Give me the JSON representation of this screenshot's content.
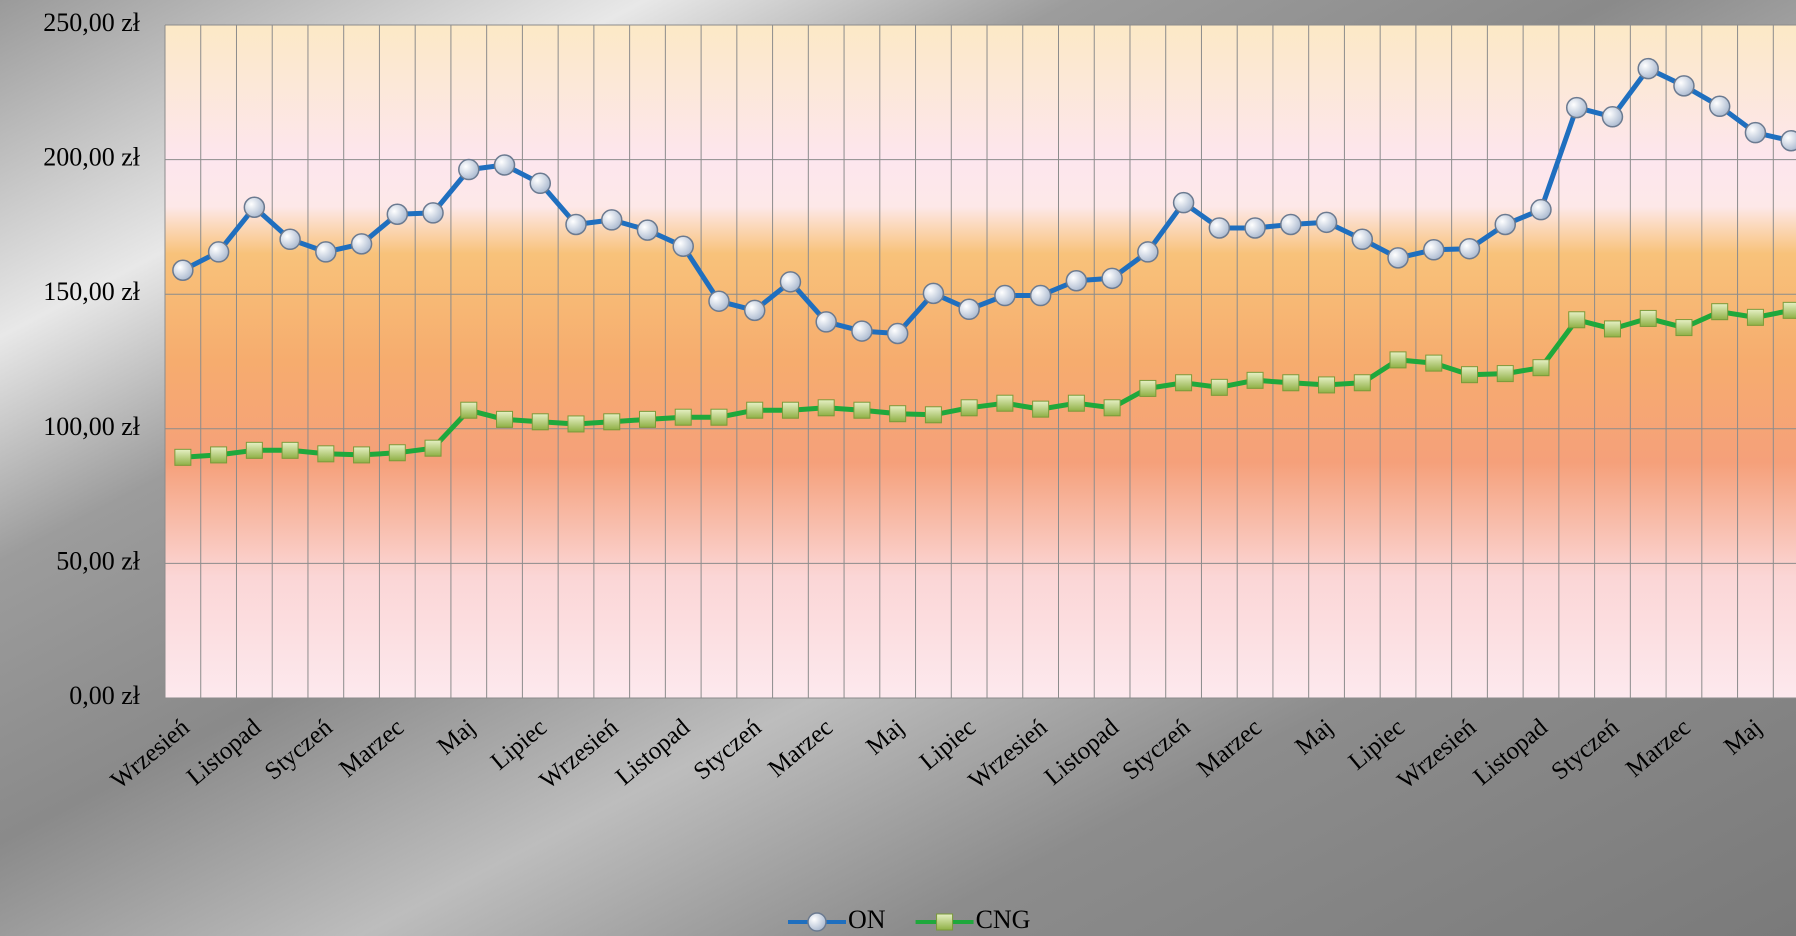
{
  "chart_data": {
    "type": "line",
    "categories": [
      "Wrzesień",
      null,
      "Listopad",
      null,
      "Styczeń",
      null,
      "Marzec",
      null,
      "Maj",
      null,
      "Lipiec",
      null,
      "Wrzesień",
      null,
      "Listopad",
      null,
      "Styczeń",
      null,
      "Marzec",
      null,
      "Maj",
      null,
      "Lipiec",
      null,
      "Wrzesień",
      null,
      "Listopad",
      null,
      "Styczeń",
      null,
      "Marzec",
      null,
      "Maj",
      null,
      "Lipiec",
      null,
      "Wrzesień",
      null,
      "Listopad",
      null,
      "Styczeń",
      null,
      "Marzec",
      null,
      "Maj",
      null
    ],
    "series": [
      {
        "name": "ON",
        "color": "#1f6fbf",
        "marker": "circle",
        "values": [
          158.9,
          165.7,
          182.3,
          170.4,
          165.7,
          168.7,
          179.7,
          180.2,
          196.3,
          198.0,
          191.2,
          175.9,
          177.6,
          173.8,
          167.8,
          147.4,
          144.0,
          154.6,
          139.7,
          136.3,
          135.4,
          150.3,
          144.4,
          149.5,
          149.5,
          155.0,
          155.9,
          165.7,
          184.0,
          174.6,
          174.6,
          175.9,
          176.7,
          170.4,
          163.5,
          166.5,
          166.9,
          175.9,
          181.4,
          219.3,
          215.9,
          233.8,
          227.4,
          219.8,
          210.0,
          207.0
        ]
      },
      {
        "name": "CNG",
        "color": "#1fa83c",
        "marker": "square",
        "values": [
          89.4,
          90.3,
          92.0,
          92.0,
          90.7,
          90.3,
          91.1,
          92.8,
          106.9,
          103.5,
          102.6,
          101.8,
          102.6,
          103.5,
          104.3,
          104.3,
          106.9,
          106.9,
          107.8,
          106.9,
          105.6,
          105.2,
          107.8,
          109.5,
          107.3,
          109.5,
          107.8,
          115.0,
          117.1,
          115.4,
          118.0,
          117.1,
          116.3,
          117.1,
          125.6,
          124.4,
          120.1,
          120.5,
          122.7,
          140.5,
          137.1,
          141.0,
          137.6,
          143.5,
          141.4,
          144.0
        ]
      }
    ],
    "ylim": [
      0,
      250
    ],
    "yticks": [
      {
        "value": 0,
        "label": "0,00 zł"
      },
      {
        "value": 50,
        "label": "50,00 zł"
      },
      {
        "value": 100,
        "label": "100,00 zł"
      },
      {
        "value": 150,
        "label": "150,00 zł"
      },
      {
        "value": 200,
        "label": "200,00 zł"
      },
      {
        "value": 250,
        "label": "250,00 zł"
      }
    ],
    "grid": true,
    "legend": "bottom"
  }
}
